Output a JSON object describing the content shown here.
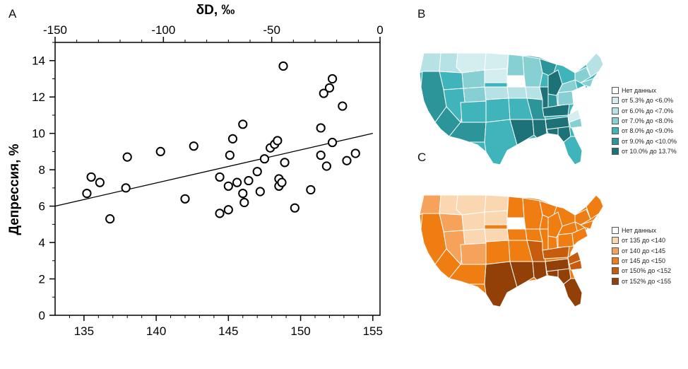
{
  "panels": {
    "a": "A",
    "b": "B",
    "c": "C"
  },
  "chart_data": [
    {
      "type": "scatter",
      "panel": "A",
      "ylabel": "Депрессия, %",
      "top_xlabel": "δD, ‰",
      "xlim": [
        133,
        155.5
      ],
      "ylim": [
        0,
        15
      ],
      "top_xlim": [
        -150,
        0
      ],
      "x_ticks": [
        135,
        140,
        145,
        150,
        155
      ],
      "y_ticks": [
        0,
        2,
        4,
        6,
        8,
        10,
        12,
        14
      ],
      "top_ticks": [
        {
          "value": -150,
          "label": "-150"
        },
        {
          "value": -100,
          "label": "-100"
        },
        {
          "value": -50,
          "label": "-50"
        },
        {
          "value": 0,
          "label": "0"
        }
      ],
      "grid": false,
      "points": [
        {
          "x": 135.2,
          "y": 6.7
        },
        {
          "x": 135.5,
          "y": 7.6
        },
        {
          "x": 136.1,
          "y": 7.3
        },
        {
          "x": 136.8,
          "y": 5.3
        },
        {
          "x": 137.9,
          "y": 7.0
        },
        {
          "x": 138.0,
          "y": 8.7
        },
        {
          "x": 140.3,
          "y": 9.0
        },
        {
          "x": 142.0,
          "y": 6.4
        },
        {
          "x": 142.6,
          "y": 9.3
        },
        {
          "x": 144.4,
          "y": 5.6
        },
        {
          "x": 144.4,
          "y": 7.6
        },
        {
          "x": 145.0,
          "y": 5.8
        },
        {
          "x": 145.0,
          "y": 7.1
        },
        {
          "x": 145.1,
          "y": 8.8
        },
        {
          "x": 145.3,
          "y": 9.7
        },
        {
          "x": 145.6,
          "y": 7.3
        },
        {
          "x": 146.0,
          "y": 10.5
        },
        {
          "x": 146.0,
          "y": 6.7
        },
        {
          "x": 146.1,
          "y": 6.2
        },
        {
          "x": 146.4,
          "y": 7.4
        },
        {
          "x": 147.0,
          "y": 7.9
        },
        {
          "x": 147.2,
          "y": 6.8
        },
        {
          "x": 147.5,
          "y": 8.6
        },
        {
          "x": 147.9,
          "y": 9.2
        },
        {
          "x": 148.2,
          "y": 9.4
        },
        {
          "x": 148.4,
          "y": 9.6
        },
        {
          "x": 148.5,
          "y": 7.5
        },
        {
          "x": 148.5,
          "y": 7.1
        },
        {
          "x": 148.7,
          "y": 7.3
        },
        {
          "x": 148.8,
          "y": 13.7
        },
        {
          "x": 148.9,
          "y": 8.4
        },
        {
          "x": 149.6,
          "y": 5.9
        },
        {
          "x": 150.7,
          "y": 6.9
        },
        {
          "x": 151.4,
          "y": 10.3
        },
        {
          "x": 151.4,
          "y": 8.8
        },
        {
          "x": 151.6,
          "y": 12.2
        },
        {
          "x": 151.8,
          "y": 8.2
        },
        {
          "x": 152.0,
          "y": 12.5
        },
        {
          "x": 152.2,
          "y": 13.0
        },
        {
          "x": 152.2,
          "y": 9.5
        },
        {
          "x": 152.9,
          "y": 11.5
        },
        {
          "x": 153.2,
          "y": 8.5
        },
        {
          "x": 153.8,
          "y": 8.9
        }
      ],
      "trendline": {
        "x1": 133,
        "y1": 6.0,
        "x2": 155,
        "y2": 10.0
      }
    }
  ],
  "maps": [
    {
      "panel": "B",
      "legend": [
        {
          "label": "Нет данных",
          "color": "#ffffff"
        },
        {
          "label": "от 5.3% до <6.0%",
          "color": "#d4eef0"
        },
        {
          "label": "от 6.0% до <7.0%",
          "color": "#b6e2e5"
        },
        {
          "label": "от 7.0% до <8.0%",
          "color": "#86d0d4"
        },
        {
          "label": "от 8.0% до <9.0%",
          "color": "#3fb4ba"
        },
        {
          "label": "от 9.0% до <10.0%",
          "color": "#2b9599"
        },
        {
          "label": "от 10.0% до 13.7%",
          "color": "#1c7276"
        }
      ]
    },
    {
      "panel": "C",
      "legend": [
        {
          "label": "Нет данных",
          "color": "#ffffff"
        },
        {
          "label": "от 135 до <140",
          "color": "#fbd7b1"
        },
        {
          "label": "от 140 до <145",
          "color": "#f7a25a"
        },
        {
          "label": "от 145 до <150",
          "color": "#f07d12"
        },
        {
          "label": "от 150% до <152",
          "color": "#c65c0c"
        },
        {
          "label": "от 152% до <155",
          "color": "#934008"
        }
      ]
    }
  ],
  "colors": {
    "axis": "#000000",
    "marker_edge": "#000000",
    "marker_fill": "#ffffff",
    "map_border": "#ffffff"
  }
}
